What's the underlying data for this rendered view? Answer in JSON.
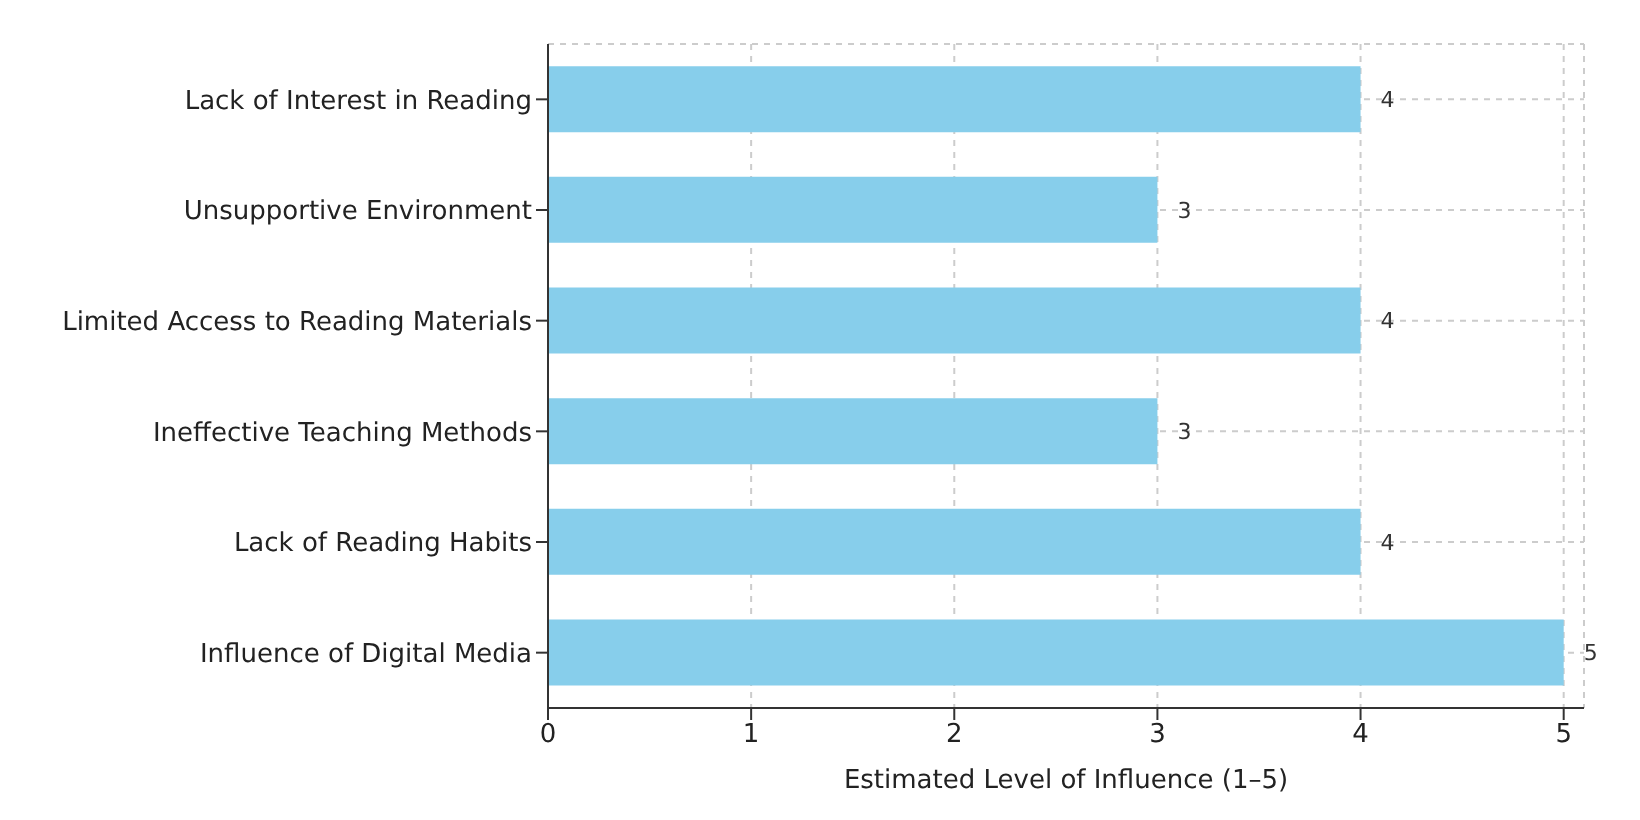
{
  "chart_data": {
    "type": "bar",
    "orientation": "horizontal",
    "xlabel": "Estimated Level of Influence (1–5)",
    "categories": [
      "Lack of Interest in Reading",
      "Unsupportive Environment",
      "Limited Access to Reading Materials",
      "Ineffective Teaching Methods",
      "Lack of Reading Habits",
      "Influence of Digital Media"
    ],
    "values": [
      4,
      3,
      4,
      3,
      4,
      5
    ],
    "color": "#87ceeb",
    "xlim": [
      0,
      5.1
    ],
    "xticks": [
      0,
      1,
      2,
      3,
      4,
      5
    ],
    "grid": true,
    "data_labels": true,
    "legend": false
  }
}
